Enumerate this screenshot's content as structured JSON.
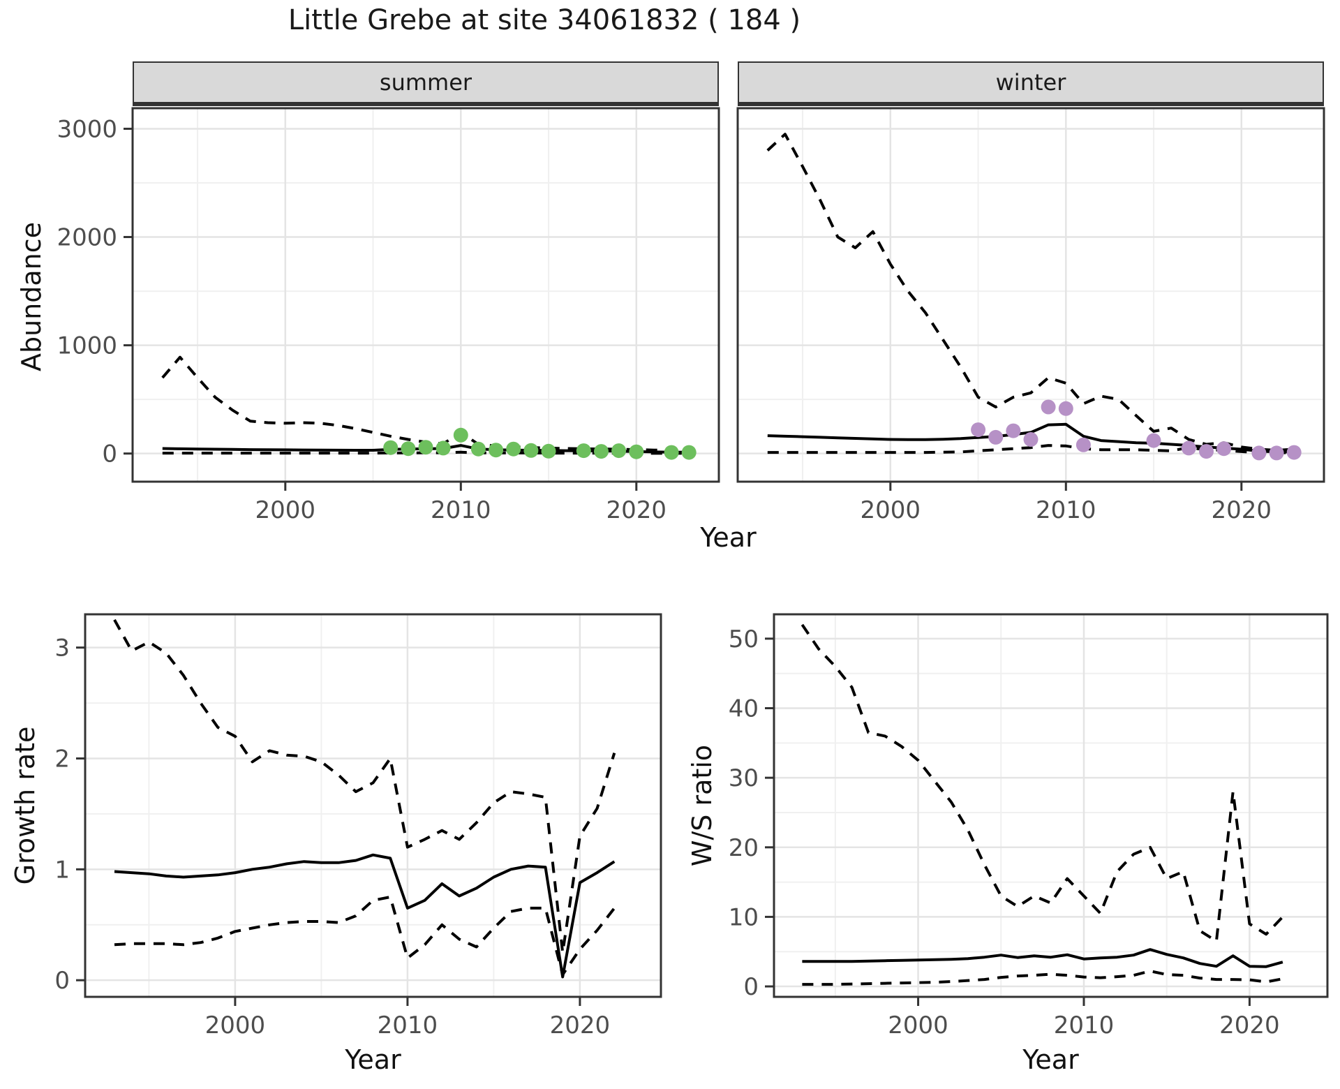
{
  "title": "Little Grebe at site 34061832 ( 184 )",
  "colors": {
    "summer_points": "#6DBF5D",
    "winter_points": "#B691C6",
    "line": "#000000",
    "grid_major": "#E4E4E4",
    "grid_minor": "#F0F0F0",
    "strip_bg": "#D9D9D9",
    "panel_border": "#333333",
    "axis_text": "#4D4D4D"
  },
  "chart_data": [
    {
      "id": "abundance_summer",
      "type": "line",
      "facet_label": "summer",
      "xlabel": "Year",
      "ylabel": "Abundance",
      "xlim": [
        1991.3,
        2024.7
      ],
      "ylim": [
        -260,
        3190
      ],
      "xticks": [
        2000,
        2010,
        2020
      ],
      "xticks_minor": [
        1995,
        2005,
        2015
      ],
      "yticks": [
        0,
        1000,
        2000,
        3000
      ],
      "yticks_minor": [
        500,
        1500,
        2500
      ],
      "x": [
        1993,
        1994,
        1995,
        1996,
        1997,
        1998,
        1999,
        2000,
        2001,
        2002,
        2003,
        2004,
        2005,
        2006,
        2007,
        2008,
        2009,
        2010,
        2011,
        2012,
        2013,
        2014,
        2015,
        2016,
        2017,
        2018,
        2019,
        2020,
        2021,
        2022,
        2023
      ],
      "series": [
        {
          "name": "upper_ci",
          "style": "dashed",
          "values": [
            700,
            890,
            700,
            520,
            400,
            300,
            285,
            280,
            285,
            280,
            260,
            230,
            195,
            160,
            130,
            105,
            90,
            195,
            85,
            70,
            62,
            56,
            50,
            46,
            44,
            42,
            40,
            36,
            32,
            30,
            30
          ]
        },
        {
          "name": "median",
          "style": "solid",
          "values": [
            46,
            44,
            42,
            40,
            38,
            36,
            35,
            34,
            33,
            32,
            31,
            30,
            30,
            38,
            42,
            44,
            46,
            75,
            42,
            35,
            32,
            30,
            28,
            26,
            25,
            24,
            22,
            18,
            15,
            13,
            12
          ]
        },
        {
          "name": "lower_ci",
          "style": "dashed",
          "values": [
            4,
            4,
            4,
            4,
            4,
            4,
            4,
            4,
            4,
            4,
            4,
            4,
            4,
            5,
            6,
            7,
            7,
            12,
            7,
            6,
            5,
            5,
            4,
            4,
            4,
            4,
            3,
            3,
            2,
            2,
            2
          ]
        }
      ],
      "points": {
        "name": "observed_counts",
        "color": "#6DBF5D",
        "x": [
          2006,
          2007,
          2008,
          2009,
          2010,
          2011,
          2012,
          2013,
          2014,
          2015,
          2017,
          2018,
          2019,
          2020,
          2022,
          2023
        ],
        "y": [
          55,
          45,
          58,
          50,
          170,
          42,
          32,
          42,
          28,
          22,
          26,
          20,
          26,
          16,
          10,
          10
        ]
      }
    },
    {
      "id": "abundance_winter",
      "type": "line",
      "facet_label": "winter",
      "xlabel": "Year",
      "ylabel": "Abundance",
      "xlim": [
        1991.3,
        2024.7
      ],
      "ylim": [
        -260,
        3190
      ],
      "xticks": [
        2000,
        2010,
        2020
      ],
      "xticks_minor": [
        1995,
        2005,
        2015
      ],
      "yticks": [
        0,
        1000,
        2000,
        3000
      ],
      "yticks_minor": [
        500,
        1500,
        2500
      ],
      "x": [
        1993,
        1994,
        1995,
        1996,
        1997,
        1998,
        1999,
        2000,
        2001,
        2002,
        2003,
        2004,
        2005,
        2006,
        2007,
        2008,
        2009,
        2010,
        2011,
        2012,
        2013,
        2014,
        2015,
        2016,
        2017,
        2018,
        2019,
        2020,
        2021,
        2022,
        2023
      ],
      "series": [
        {
          "name": "upper_ci",
          "style": "dashed",
          "values": [
            2800,
            2950,
            2650,
            2340,
            2000,
            1900,
            2050,
            1750,
            1500,
            1300,
            1050,
            800,
            520,
            430,
            520,
            560,
            700,
            650,
            460,
            530,
            500,
            350,
            205,
            235,
            130,
            85,
            100,
            60,
            40,
            30,
            40
          ]
        },
        {
          "name": "median",
          "style": "solid",
          "values": [
            165,
            160,
            155,
            150,
            145,
            140,
            135,
            130,
            128,
            128,
            132,
            138,
            148,
            158,
            175,
            195,
            265,
            270,
            160,
            120,
            110,
            100,
            95,
            85,
            75,
            60,
            50,
            40,
            22,
            15,
            15
          ]
        },
        {
          "name": "lower_ci",
          "style": "dashed",
          "values": [
            10,
            10,
            10,
            10,
            10,
            10,
            10,
            10,
            10,
            10,
            12,
            15,
            25,
            35,
            45,
            55,
            75,
            70,
            45,
            35,
            35,
            35,
            30,
            25,
            55,
            35,
            30,
            18,
            8,
            5,
            10
          ]
        }
      ],
      "points": {
        "name": "observed_counts",
        "color": "#B691C6",
        "x": [
          2005,
          2006,
          2007,
          2008,
          2009,
          2010,
          2011,
          2015,
          2017,
          2018,
          2019,
          2021,
          2022,
          2023
        ],
        "y": [
          220,
          150,
          210,
          130,
          430,
          415,
          80,
          120,
          50,
          20,
          45,
          5,
          5,
          10
        ]
      }
    },
    {
      "id": "growth_rate",
      "type": "line",
      "facet_label": "",
      "xlabel": "Year",
      "ylabel": "Growth rate",
      "xlim": [
        1991.3,
        2024.7
      ],
      "ylim": [
        -0.15,
        3.3
      ],
      "xticks": [
        2000,
        2010,
        2020
      ],
      "xticks_minor": [
        1995,
        2005,
        2015
      ],
      "yticks": [
        0,
        1,
        2,
        3
      ],
      "yticks_minor": [
        0.5,
        1.5,
        2.5
      ],
      "x": [
        1993,
        1994,
        1995,
        1996,
        1997,
        1998,
        1999,
        2000,
        2001,
        2002,
        2003,
        2004,
        2005,
        2006,
        2007,
        2008,
        2009,
        2010,
        2011,
        2012,
        2013,
        2014,
        2015,
        2016,
        2017,
        2018,
        2019,
        2020,
        2021,
        2022
      ],
      "series": [
        {
          "name": "upper_ci",
          "style": "dashed",
          "values": [
            3.25,
            2.97,
            3.05,
            2.95,
            2.75,
            2.5,
            2.28,
            2.2,
            1.97,
            2.07,
            2.03,
            2.02,
            1.97,
            1.85,
            1.7,
            1.78,
            2.0,
            1.2,
            1.27,
            1.35,
            1.27,
            1.42,
            1.6,
            1.7,
            1.68,
            1.65,
            0.25,
            1.3,
            1.55,
            2.05
          ]
        },
        {
          "name": "median",
          "style": "solid",
          "values": [
            0.98,
            0.97,
            0.96,
            0.94,
            0.93,
            0.94,
            0.95,
            0.97,
            1.0,
            1.02,
            1.05,
            1.07,
            1.06,
            1.06,
            1.08,
            1.13,
            1.1,
            0.65,
            0.72,
            0.87,
            0.76,
            0.83,
            0.93,
            1.0,
            1.03,
            1.02,
            0.03,
            0.88,
            0.97,
            1.07
          ]
        },
        {
          "name": "lower_ci",
          "style": "dashed",
          "values": [
            0.32,
            0.33,
            0.33,
            0.33,
            0.32,
            0.34,
            0.38,
            0.44,
            0.47,
            0.5,
            0.52,
            0.53,
            0.53,
            0.52,
            0.58,
            0.72,
            0.75,
            0.2,
            0.32,
            0.5,
            0.37,
            0.3,
            0.47,
            0.62,
            0.65,
            0.65,
            0.05,
            0.28,
            0.45,
            0.65
          ]
        }
      ],
      "points": null
    },
    {
      "id": "ws_ratio",
      "type": "line",
      "facet_label": "",
      "xlabel": "Year",
      "ylabel": "W/S ratio",
      "xlim": [
        1991.3,
        2024.7
      ],
      "ylim": [
        -1.5,
        53.5
      ],
      "xticks": [
        2000,
        2010,
        2020
      ],
      "xticks_minor": [
        1995,
        2005,
        2015
      ],
      "yticks": [
        0,
        10,
        20,
        30,
        40,
        50
      ],
      "yticks_minor": [
        5,
        15,
        25,
        35,
        45
      ],
      "x": [
        1993,
        1994,
        1995,
        1996,
        1997,
        1998,
        1999,
        2000,
        2001,
        2002,
        2003,
        2004,
        2005,
        2006,
        2007,
        2008,
        2009,
        2010,
        2011,
        2012,
        2013,
        2014,
        2015,
        2016,
        2017,
        2018,
        2019,
        2020,
        2021,
        2022
      ],
      "series": [
        {
          "name": "upper_ci",
          "style": "dashed",
          "values": [
            52,
            48.5,
            46,
            43,
            36.5,
            36,
            34.5,
            32.5,
            29.5,
            26.5,
            22.5,
            17.5,
            13,
            11.5,
            13,
            12,
            15.5,
            13,
            10.5,
            16.5,
            19,
            20,
            15.5,
            16.5,
            8,
            6.5,
            28,
            9,
            7.5,
            10
          ]
        },
        {
          "name": "median",
          "style": "solid",
          "values": [
            3.6,
            3.6,
            3.6,
            3.6,
            3.65,
            3.7,
            3.75,
            3.8,
            3.85,
            3.9,
            4.0,
            4.2,
            4.5,
            4.15,
            4.4,
            4.2,
            4.55,
            3.95,
            4.1,
            4.2,
            4.5,
            5.3,
            4.6,
            4.1,
            3.3,
            2.9,
            4.4,
            2.9,
            2.85,
            3.5
          ]
        },
        {
          "name": "lower_ci",
          "style": "dashed",
          "values": [
            0.3,
            0.3,
            0.3,
            0.35,
            0.4,
            0.45,
            0.5,
            0.55,
            0.6,
            0.7,
            0.85,
            1.0,
            1.3,
            1.5,
            1.6,
            1.75,
            1.6,
            1.35,
            1.25,
            1.4,
            1.6,
            2.2,
            1.7,
            1.6,
            1.2,
            1.0,
            1.0,
            0.95,
            0.65,
            1.1
          ]
        }
      ],
      "points": null
    }
  ]
}
